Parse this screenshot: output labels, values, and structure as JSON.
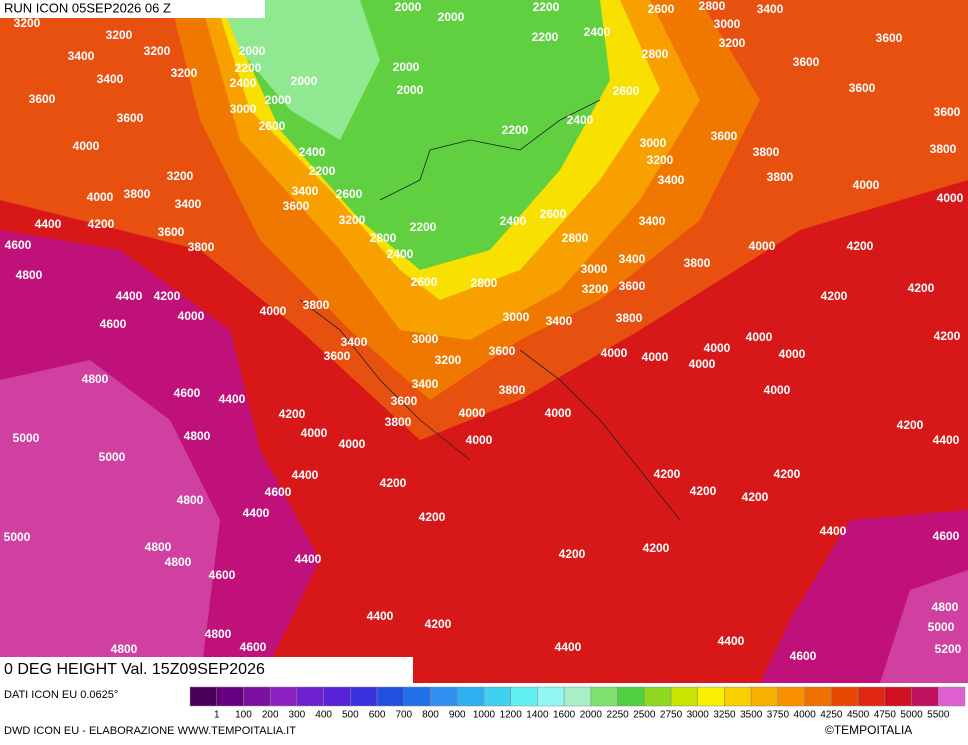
{
  "header": {
    "title": "RUN ICON 05SEP2026 06 Z"
  },
  "footer": {
    "title": "0 DEG HEIGHT Val. 15Z09SEP2026",
    "model": "DATI ICON EU 0.0625°",
    "credit": "DWD ICON EU - ELABORAZIONE WWW.TEMPOITALIA.IT",
    "copyright": "©TEMPOITALIA"
  },
  "map": {
    "labels": [
      3200,
      3200,
      3200,
      3400,
      3400,
      3200,
      3600,
      3600,
      4000,
      3200,
      4000,
      3800,
      3400,
      4400,
      4200,
      3600,
      3800,
      4600,
      4800,
      4400,
      4200,
      4600,
      4000,
      4000,
      3800,
      4800,
      4600,
      4400,
      5000,
      5000,
      4800,
      4200,
      4000,
      4000,
      3600,
      3400,
      4800,
      4400,
      4600,
      4400,
      4200,
      5000,
      4800,
      4800,
      4600,
      4400,
      4200,
      4800,
      4600,
      4800,
      4400,
      4200,
      4200,
      4400,
      4200,
      4400,
      4600,
      4400,
      4600,
      4800,
      5000,
      5200,
      4200,
      4200,
      4200,
      4200,
      4200,
      4400,
      4000,
      4000,
      4000,
      3800,
      3800,
      3600,
      3400,
      3200,
      3000,
      3600,
      3000,
      3400,
      3800,
      4000,
      4000,
      4000,
      4000,
      4000,
      4000,
      4000,
      4200,
      4200,
      4200,
      4200,
      4000,
      3800,
      3600,
      3200,
      3000,
      3400,
      3400,
      2800,
      2600,
      2400,
      2800,
      2600,
      2400,
      2800,
      3200,
      3600,
      2600,
      3400,
      2200,
      2400,
      2600,
      3000,
      2000,
      2400,
      2000,
      2200,
      2000,
      2000,
      2000,
      2200,
      2200,
      2400,
      2200,
      2200,
      2000,
      2000,
      2400,
      2600,
      2800,
      2600,
      2800,
      3000,
      3200,
      3400,
      3600,
      3600,
      3600,
      3600,
      3800,
      3600,
      3000,
      3200,
      3400,
      3800,
      3800,
      4000,
      4000
    ]
  },
  "legend": {
    "colors": [
      "#4a0058",
      "#660080",
      "#7a10a0",
      "#8c20c0",
      "#7020d0",
      "#5820d8",
      "#3a30e0",
      "#2050e0",
      "#2070e8",
      "#3090f0",
      "#30b0f0",
      "#40d0f0",
      "#60f0f0",
      "#90f8f0",
      "#a8f0c8",
      "#80e070",
      "#50d040",
      "#90d820",
      "#c8e400",
      "#f8f000",
      "#f8d000",
      "#f8b000",
      "#f89000",
      "#f07000",
      "#e84800",
      "#e02810",
      "#d01020",
      "#c01060",
      "#e060d0"
    ],
    "labels": [
      1,
      100,
      200,
      300,
      400,
      500,
      600,
      700,
      800,
      900,
      1000,
      1200,
      1400,
      1600,
      2000,
      2250,
      2500,
      2750,
      3000,
      3250,
      3500,
      3750,
      4000,
      4250,
      4500,
      4750,
      5000,
      5500
    ]
  }
}
